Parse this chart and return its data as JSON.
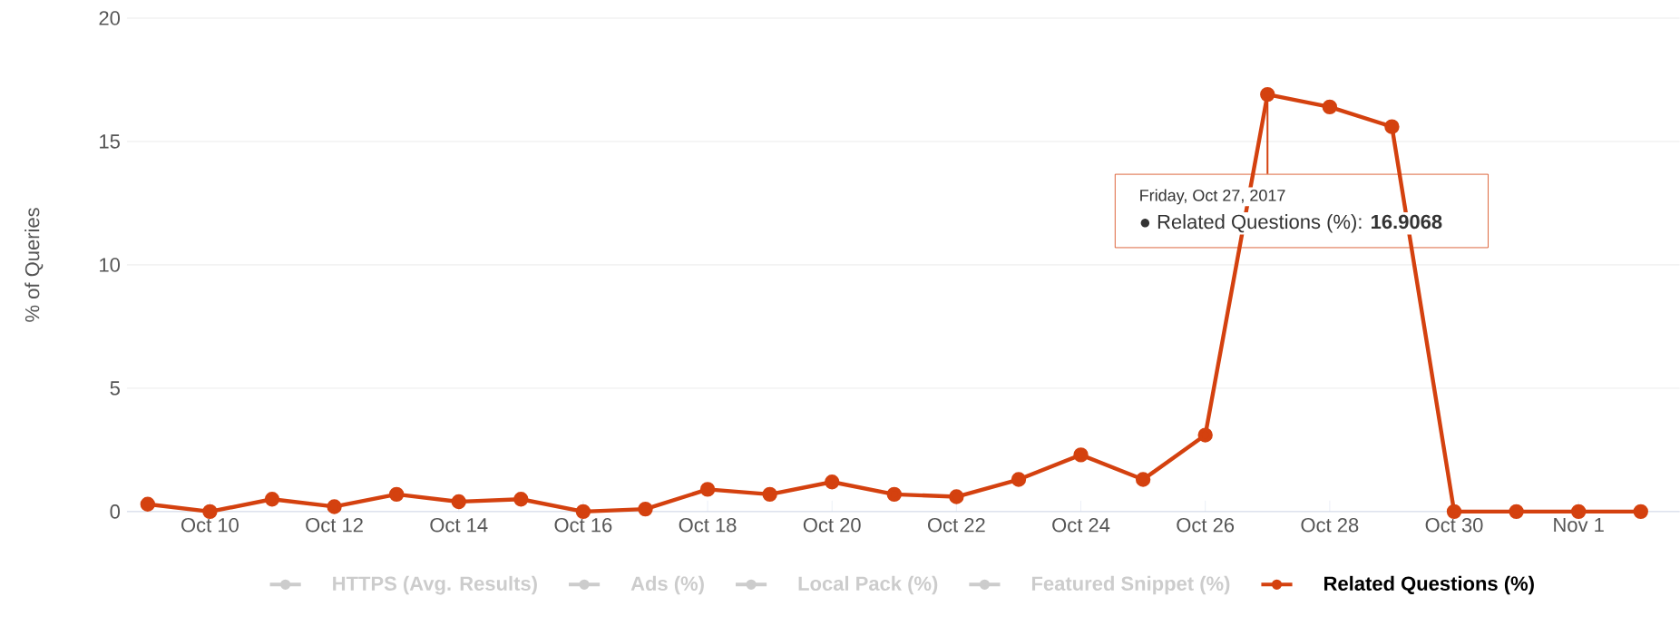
{
  "chart_data": {
    "type": "line",
    "ylabel": "% of Queries",
    "x": [
      "2017-10-09",
      "2017-10-10",
      "2017-10-11",
      "2017-10-12",
      "2017-10-13",
      "2017-10-14",
      "2017-10-15",
      "2017-10-16",
      "2017-10-17",
      "2017-10-18",
      "2017-10-19",
      "2017-10-20",
      "2017-10-21",
      "2017-10-22",
      "2017-10-23",
      "2017-10-24",
      "2017-10-25",
      "2017-10-26",
      "2017-10-27",
      "2017-10-28",
      "2017-10-29",
      "2017-10-30",
      "2017-10-31",
      "2017-11-01",
      "2017-11-02"
    ],
    "series": [
      {
        "name": "HTTPS (Avg. Results)",
        "color": "#cccccc",
        "values": [
          null,
          null,
          null,
          null,
          null,
          null,
          null,
          null,
          null,
          null,
          null,
          null,
          null,
          null,
          null,
          null,
          null,
          null,
          null,
          null,
          null,
          null,
          null,
          null,
          null
        ]
      },
      {
        "name": "Ads (%)",
        "color": "#cccccc",
        "values": [
          null,
          null,
          null,
          null,
          null,
          null,
          null,
          null,
          null,
          null,
          null,
          null,
          null,
          null,
          null,
          null,
          null,
          null,
          null,
          null,
          null,
          null,
          null,
          null,
          null
        ]
      },
      {
        "name": "Local Pack (%)",
        "color": "#cccccc",
        "values": [
          null,
          null,
          null,
          null,
          null,
          null,
          null,
          null,
          null,
          null,
          null,
          null,
          null,
          null,
          null,
          null,
          null,
          null,
          null,
          null,
          null,
          null,
          null,
          null,
          null
        ]
      },
      {
        "name": "Featured Snippet (%)",
        "color": "#cccccc",
        "values": [
          null,
          null,
          null,
          null,
          null,
          null,
          null,
          null,
          null,
          null,
          null,
          null,
          null,
          null,
          null,
          null,
          null,
          null,
          null,
          null,
          null,
          null,
          null,
          null,
          null
        ]
      },
      {
        "name": "Related Questions (%)",
        "color": "#d4410f",
        "values": [
          0.3,
          0,
          0.5,
          0.2,
          0.7,
          0.4,
          0.5,
          0,
          0.1,
          0.9,
          0.7,
          1.2,
          0.7,
          0.6,
          1.3,
          2.3,
          1.3,
          3.1,
          16.9068,
          16.4,
          15.6,
          0,
          0,
          0,
          0
        ]
      }
    ],
    "xlim": [
      "2017-10-08T16:00",
      "2017-11-02T15:00"
    ],
    "xticks": [
      {
        "value": "2017-10-10",
        "label": "Oct 10"
      },
      {
        "value": "2017-10-12",
        "label": "Oct 12"
      },
      {
        "value": "2017-10-14",
        "label": "Oct 14"
      },
      {
        "value": "2017-10-16",
        "label": "Oct 16"
      },
      {
        "value": "2017-10-18",
        "label": "Oct 18"
      },
      {
        "value": "2017-10-20",
        "label": "Oct 20"
      },
      {
        "value": "2017-10-22",
        "label": "Oct 22"
      },
      {
        "value": "2017-10-24",
        "label": "Oct 24"
      },
      {
        "value": "2017-10-26",
        "label": "Oct 26"
      },
      {
        "value": "2017-10-28",
        "label": "Oct 28"
      },
      {
        "value": "2017-10-30",
        "label": "Oct 30"
      },
      {
        "value": "2017-11-01",
        "label": "Nov 1"
      }
    ],
    "ylim": [
      0,
      20
    ],
    "yticks": [
      0,
      5,
      10,
      15,
      20
    ],
    "grid": "y",
    "legend": "bottom",
    "marker": "circle",
    "line_style": "solid",
    "annotations": [
      {
        "text": "Friday, Oct 27, 2017",
        "x": "2017-10-27",
        "y": 16.9068
      },
      "● Related Questions (%): **16.9068**"
    ]
  }
}
